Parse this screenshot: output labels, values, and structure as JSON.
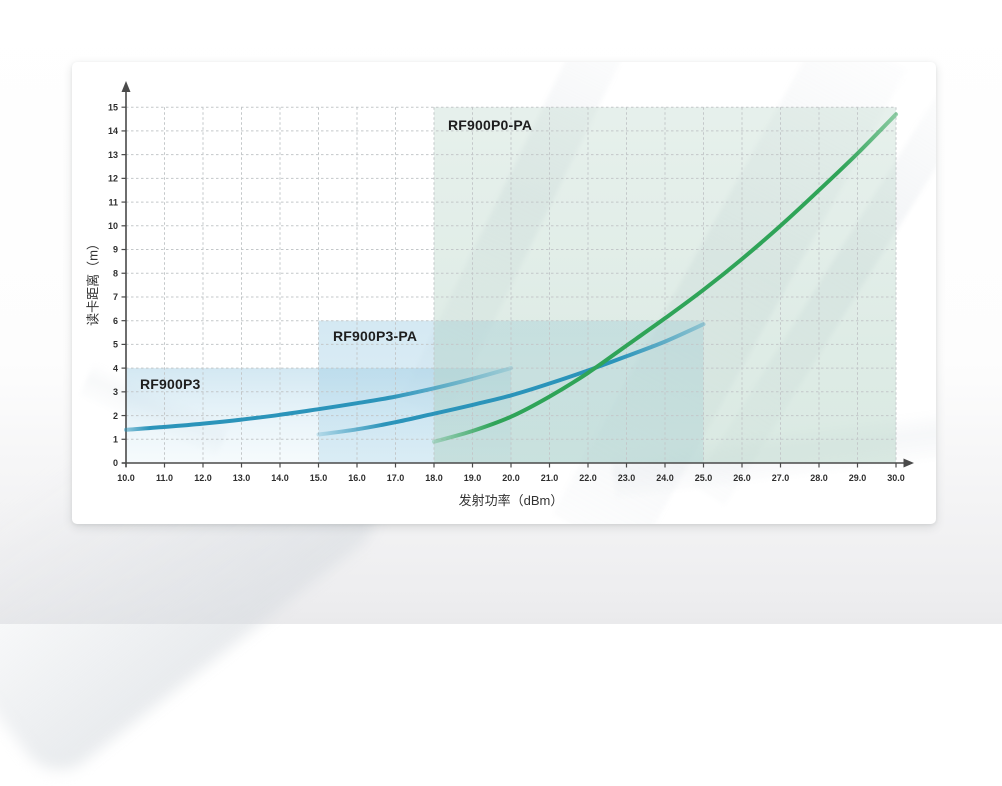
{
  "chart_data": {
    "type": "line",
    "title": "",
    "xlabel": "发射功率（dBm）",
    "ylabel": "读卡距离（m）",
    "xlim": [
      10,
      30
    ],
    "ylim": [
      0,
      15
    ],
    "x_ticks": [
      10,
      11,
      12,
      13,
      14,
      15,
      16,
      17,
      18,
      19,
      20,
      21,
      22,
      23,
      24,
      25,
      26,
      27,
      28,
      29,
      30
    ],
    "x_tick_labels": [
      "10.0",
      "11.0",
      "12.0",
      "13.0",
      "14.0",
      "15.0",
      "16.0",
      "17.0",
      "18.0",
      "19.0",
      "20.0",
      "21.0",
      "22.0",
      "23.0",
      "24.0",
      "25.0",
      "26.0",
      "27.0",
      "28.0",
      "29.0",
      "30.0"
    ],
    "y_ticks": [
      0,
      1,
      2,
      3,
      4,
      5,
      6,
      7,
      8,
      9,
      10,
      11,
      12,
      13,
      14,
      15
    ],
    "y_tick_labels": [
      "0",
      "1",
      "2",
      "3",
      "4",
      "5",
      "6",
      "7",
      "8",
      "9",
      "10",
      "11",
      "12",
      "13",
      "14",
      "15"
    ],
    "grid": "dashed",
    "legend_position": "labels-inside-regions",
    "axis_color": "#4a4a4a",
    "grid_color": "#c3c7c9",
    "series": [
      {
        "name": "RF900P3",
        "color": "#2B94BA",
        "points": [
          [
            10,
            1.4
          ],
          [
            11,
            1.52
          ],
          [
            12,
            1.66
          ],
          [
            13,
            1.83
          ],
          [
            14,
            2.03
          ],
          [
            15,
            2.27
          ],
          [
            16,
            2.52
          ],
          [
            17,
            2.8
          ],
          [
            18,
            3.15
          ],
          [
            19,
            3.55
          ],
          [
            20,
            4.0
          ]
        ],
        "region": {
          "x": [
            10,
            20
          ],
          "y": [
            0,
            4
          ]
        },
        "region_fill_top": "rgba(150,200,225,0.42)",
        "region_fill_bottom": "rgba(208,233,244,0.20)"
      },
      {
        "name": "RF900P3-PA",
        "color": "#2B94BA",
        "points": [
          [
            15,
            1.2
          ],
          [
            16,
            1.42
          ],
          [
            17,
            1.72
          ],
          [
            18,
            2.08
          ],
          [
            19,
            2.45
          ],
          [
            20,
            2.85
          ],
          [
            21,
            3.35
          ],
          [
            22,
            3.9
          ],
          [
            23,
            4.5
          ],
          [
            24,
            5.12
          ],
          [
            25,
            5.85
          ]
        ],
        "region": {
          "x": [
            15,
            25
          ],
          "y": [
            0,
            6
          ]
        },
        "region_fill_top": "rgba(148,199,224,0.40)",
        "region_fill_bottom": "rgba(165,210,231,0.34)"
      },
      {
        "name": "RF900P0-PA",
        "color": "#2FA458",
        "points": [
          [
            18,
            0.9
          ],
          [
            19,
            1.35
          ],
          [
            20,
            1.95
          ],
          [
            21,
            2.8
          ],
          [
            22,
            3.8
          ],
          [
            23,
            4.95
          ],
          [
            24,
            6.1
          ],
          [
            25,
            7.3
          ],
          [
            26,
            8.6
          ],
          [
            27,
            10.0
          ],
          [
            28,
            11.5
          ],
          [
            29,
            13.05
          ],
          [
            30,
            14.7
          ]
        ],
        "region": {
          "x": [
            18,
            30
          ],
          "y": [
            0,
            15
          ]
        },
        "region_fill_top": "rgba(187,214,202,0.36)",
        "region_fill_bottom": "rgba(174,208,193,0.46)"
      }
    ]
  }
}
